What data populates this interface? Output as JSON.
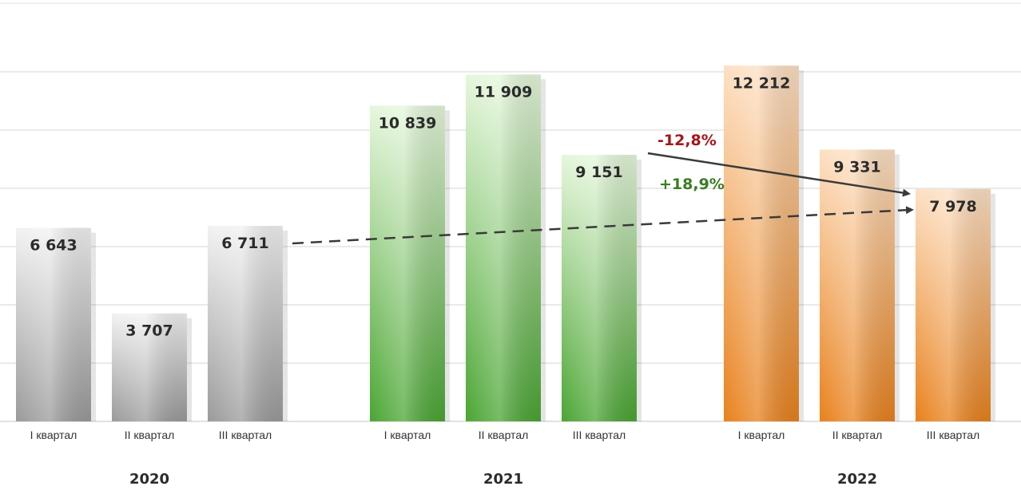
{
  "chart_data": {
    "type": "bar",
    "title": "",
    "xlabel": "",
    "ylabel": "",
    "ylim": [
      0,
      14000
    ],
    "grid": true,
    "groups": [
      {
        "year": "2020",
        "color_top": "#f2f2f2",
        "color_bottom": "#9a9a9a",
        "bars": [
          {
            "category": "I квартал",
            "value": 6643,
            "label": "6 643"
          },
          {
            "category": "II квартал",
            "value": 3707,
            "label": "3 707"
          },
          {
            "category": "III квартал",
            "value": 6711,
            "label": "6 711"
          }
        ]
      },
      {
        "year": "2021",
        "color_top": "#e6f7dc",
        "color_bottom": "#4aa532",
        "bars": [
          {
            "category": "I квартал",
            "value": 10839,
            "label": "10 839"
          },
          {
            "category": "II квартал",
            "value": 11909,
            "label": "11 909"
          },
          {
            "category": "III квартал",
            "value": 9151,
            "label": "9 151"
          }
        ]
      },
      {
        "year": "2022",
        "color_top": "#fde0c4",
        "color_bottom": "#e8811c",
        "bars": [
          {
            "category": "I квартал",
            "value": 12212,
            "label": "12 212"
          },
          {
            "category": "II квартал",
            "value": 9331,
            "label": "9 331"
          },
          {
            "category": "III квартал",
            "value": 7978,
            "label": "7 978"
          }
        ]
      }
    ],
    "annotations": [
      {
        "text": "-12,8%",
        "from": "2021 III квартал",
        "to": "2022 III квартал",
        "style": "solid",
        "color": "#a4161a"
      },
      {
        "text": "+18,9%",
        "from": "2020 III квартал",
        "to": "2022 III квартал",
        "style": "dashed",
        "color": "#3a7d22"
      }
    ]
  }
}
